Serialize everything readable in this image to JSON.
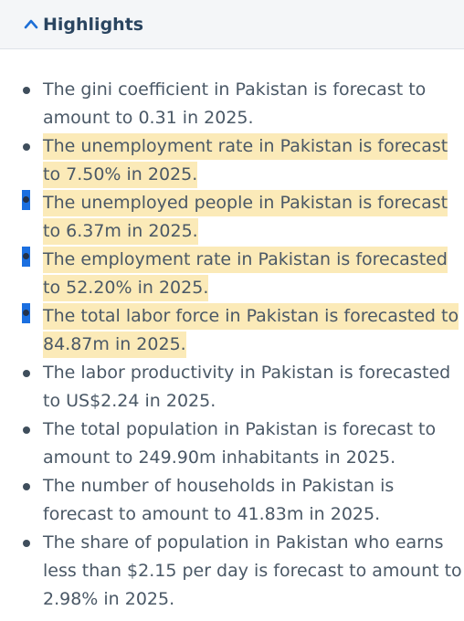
{
  "header": {
    "title": "Highlights",
    "chevron_icon": "chevron-up-icon"
  },
  "items": [
    {
      "lines": [
        "The gini coefficient in Pakistan is forecast to",
        "amount to 0.31 in 2025."
      ],
      "highlighted": false,
      "selected_bullet": false
    },
    {
      "lines": [
        "The unemployment rate in Pakistan is forecast",
        "to 7.50% in 2025."
      ],
      "highlighted": true,
      "selected_bullet": false
    },
    {
      "lines": [
        "The unemployed people in Pakistan is forecast",
        "to 6.37m in 2025."
      ],
      "highlighted": true,
      "selected_bullet": true
    },
    {
      "lines": [
        "The employment rate in Pakistan is forecasted",
        "to 52.20% in 2025."
      ],
      "highlighted": true,
      "selected_bullet": true
    },
    {
      "lines": [
        "The total labor force in Pakistan is forecasted to",
        "84.87m in 2025."
      ],
      "highlighted": true,
      "selected_bullet": true
    },
    {
      "lines": [
        "The labor productivity in Pakistan is forecasted",
        "to US$2.24 in 2025."
      ],
      "highlighted": false,
      "selected_bullet": false
    },
    {
      "lines": [
        "The total population in Pakistan is forecast to",
        "amount to 249.90m inhabitants in 2025."
      ],
      "highlighted": false,
      "selected_bullet": false
    },
    {
      "lines": [
        "The number of households in Pakistan is",
        "forecast to amount to 41.83m in 2025."
      ],
      "highlighted": false,
      "selected_bullet": false
    },
    {
      "lines": [
        "The share of population in Pakistan who earns",
        "less than $2.15 per day is forecast to amount to",
        "2.98% in 2025."
      ],
      "highlighted": false,
      "selected_bullet": false
    }
  ]
}
